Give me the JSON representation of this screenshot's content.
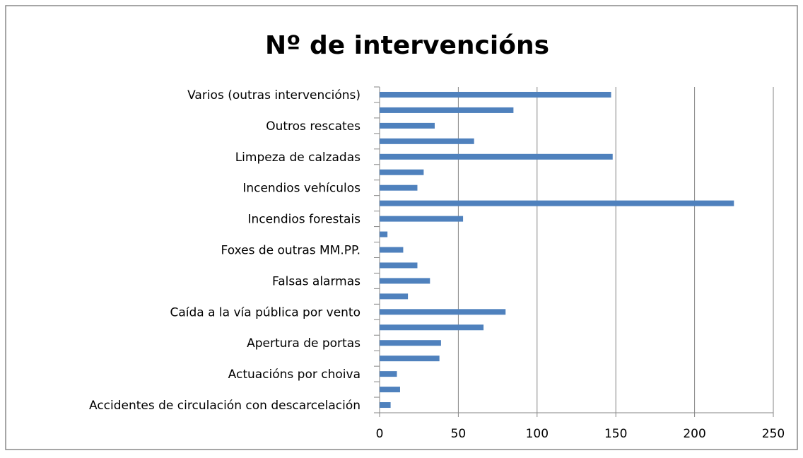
{
  "chart_data": {
    "type": "bar",
    "orientation": "horizontal",
    "title": "Nº de intervencións",
    "categories": [
      "Accidentes de circulación con descarcelación",
      null,
      "Actuacións por choiva",
      null,
      "Apertura de portas",
      null,
      "Caída a la vía pública por vento",
      null,
      "Falsas alarmas",
      null,
      "Foxes de outras MM.PP.",
      null,
      "Incendios forestais",
      null,
      "Incendios vehículos",
      null,
      "Limpeza de calzadas",
      null,
      "Outros rescates",
      null,
      "Varios (outras intervencións)"
    ],
    "values": [
      7,
      13,
      11,
      38,
      39,
      66,
      80,
      18,
      32,
      24,
      15,
      5,
      53,
      225,
      24,
      28,
      148,
      60,
      35,
      85,
      147
    ],
    "color": "#4f81bd",
    "xlim": [
      0,
      250
    ],
    "xticks": [
      0,
      50,
      100,
      150,
      200,
      250
    ],
    "grid": true
  }
}
